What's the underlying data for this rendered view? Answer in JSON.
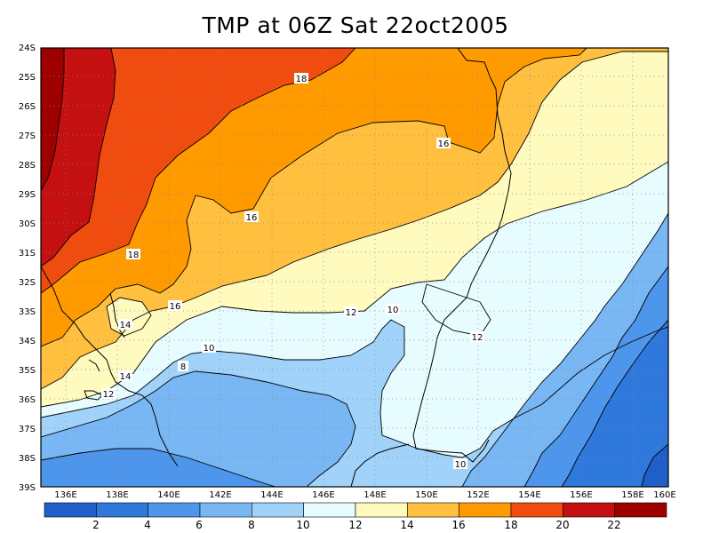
{
  "title": "TMP at 06Z Sat 22oct2005",
  "lat_ticks": [
    "24S",
    "25S",
    "26S",
    "27S",
    "28S",
    "29S",
    "30S",
    "31S",
    "32S",
    "33S",
    "34S",
    "35S",
    "36S",
    "37S",
    "38S",
    "39S"
  ],
  "lon_ticks": [
    "136E",
    "138E",
    "140E",
    "142E",
    "144E",
    "146E",
    "148E",
    "150E",
    "152E",
    "154E",
    "156E",
    "158E",
    "160E"
  ],
  "contour_labels": [
    "18",
    "16",
    "16",
    "18",
    "16",
    "14",
    "14",
    "12",
    "12",
    "10",
    "10",
    "8",
    "12",
    "10"
  ],
  "colorbar": {
    "labels": [
      "2",
      "4",
      "6",
      "8",
      "10",
      "12",
      "14",
      "16",
      "18",
      "20",
      "22"
    ],
    "colors": [
      "#1f60c8",
      "#2f78dc",
      "#4e96eb",
      "#78b6f4",
      "#a0d2fa",
      "#e6fcff",
      "#fffabe",
      "#ffc040",
      "#ff9a00",
      "#f04c10",
      "#c41010",
      "#9e0000"
    ]
  }
}
